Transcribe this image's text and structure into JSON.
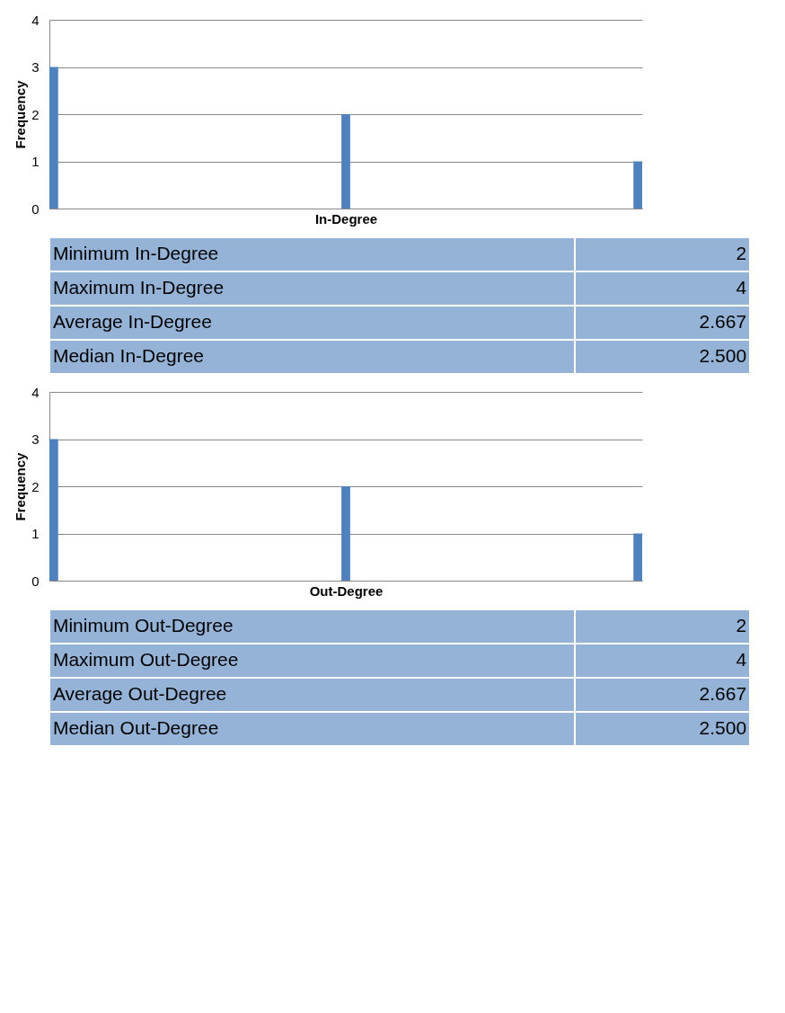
{
  "chart_data": [
    {
      "type": "bar",
      "xlabel": "In-Degree",
      "ylabel": "Frequency",
      "categories": [
        null,
        null,
        null
      ],
      "values": [
        3,
        2,
        1
      ],
      "color": "#4f81bd",
      "ylim": [
        0,
        4
      ],
      "yticks": [
        0,
        1,
        2,
        3,
        4
      ],
      "grid": "y",
      "tick_labels": "y"
    },
    {
      "type": "other",
      "color": "#95b3d7",
      "annotations": [
        "Minimum In-Degree",
        "2",
        "Maximum In-Degree",
        "4",
        "Average In-Degree",
        "2.667",
        "Median In-Degree",
        "2.500"
      ]
    },
    {
      "type": "bar",
      "xlabel": "Out-Degree",
      "ylabel": "Frequency",
      "categories": [
        null,
        null,
        null
      ],
      "values": [
        3,
        2,
        1
      ],
      "color": "#4f81bd",
      "ylim": [
        0,
        4
      ],
      "yticks": [
        0,
        1,
        2,
        3,
        4
      ],
      "grid": "y",
      "tick_labels": "y"
    },
    {
      "type": "other",
      "color": "#95b3d7",
      "annotations": [
        "Minimum Out-Degree",
        "2",
        "Maximum Out-Degree",
        "4",
        "Average Out-Degree",
        "2.667",
        "Median Out-Degree",
        "2.500"
      ]
    }
  ]
}
